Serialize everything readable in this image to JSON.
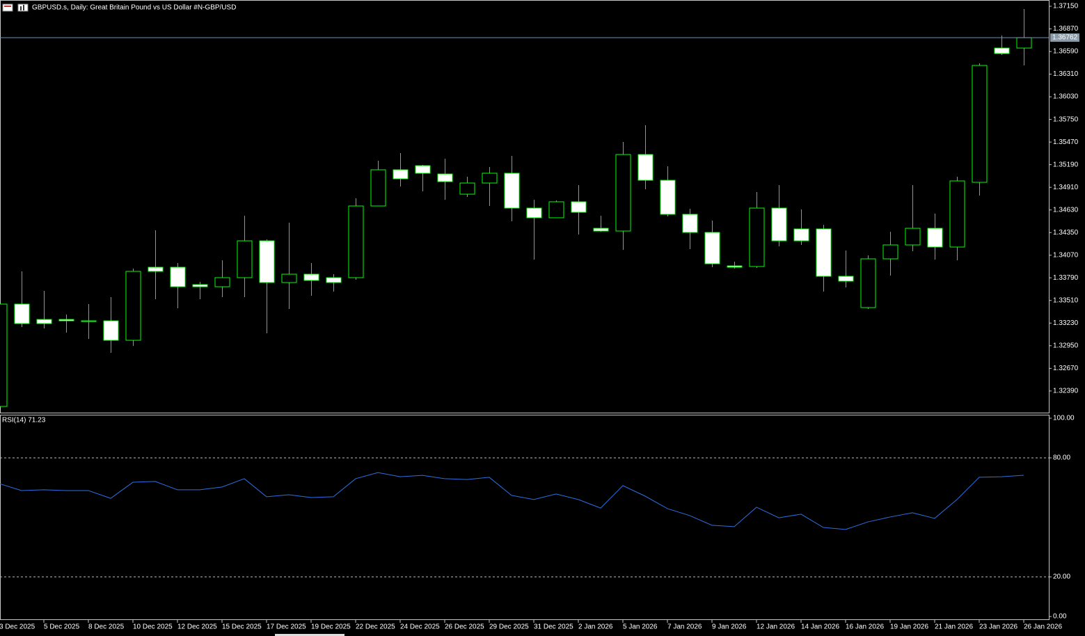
{
  "chart_data": [
    {
      "type": "candlestick",
      "title": "GBPUSD.s, Daily:  Great Britain Pound vs US Dollar #N-GBP/USD",
      "categories": [
        "3 Dec 2025",
        null,
        "5 Dec 2025",
        null,
        "8 Dec 2025",
        null,
        "10 Dec 2025",
        null,
        "12 Dec 2025",
        null,
        "15 Dec 2025",
        null,
        "17 Dec 2025",
        null,
        "19 Dec 2025",
        null,
        "22 Dec 2025",
        null,
        "24 Dec 2025",
        null,
        "26 Dec 2025",
        null,
        "29 Dec 2025",
        null,
        "31 Dec 2025",
        null,
        "2 Jan 2026",
        null,
        "5 Jan 2026",
        null,
        "7 Jan 2026",
        null,
        "9 Jan 2026",
        null,
        "12 Jan 2026",
        null,
        "14 Jan 2026",
        null,
        "16 Jan 2026",
        null,
        "19 Jan 2026",
        null,
        "21 Jan 2026",
        null,
        "23 Jan 2026",
        null,
        "26 Jan 2026"
      ],
      "open": [
        1.32199,
        1.33465,
        1.33275,
        1.33275,
        1.33258,
        1.33258,
        1.33017,
        1.33921,
        1.33921,
        1.33706,
        1.3368,
        1.33792,
        1.34248,
        1.33732,
        1.33835,
        1.33792,
        1.33792,
        1.34679,
        1.35127,
        1.35178,
        1.35075,
        1.34825,
        1.34963,
        1.35084,
        1.34653,
        1.34533,
        1.34731,
        1.34403,
        1.34369,
        1.35316,
        1.34997,
        1.34576,
        1.34352,
        1.33938,
        1.3393,
        1.34653,
        1.34395,
        1.34395,
        1.33809,
        1.33422,
        1.34025,
        1.34197,
        1.34403,
        1.34171,
        1.34972,
        1.36633,
        1.36633
      ],
      "high": [
        1.33465,
        1.3387,
        1.33629,
        1.33336,
        1.33465,
        1.33551,
        1.33904,
        1.34378,
        1.33973,
        1.3374,
        1.34007,
        1.34558,
        1.34266,
        1.34472,
        1.33973,
        1.33835,
        1.34774,
        1.35239,
        1.35333,
        1.35187,
        1.35264,
        1.35041,
        1.35161,
        1.35299,
        1.34756,
        1.34748,
        1.34937,
        1.34558,
        1.35471,
        1.35678,
        1.3517,
        1.34644,
        1.34498,
        1.3399,
        1.34851,
        1.34937,
        1.34636,
        1.34446,
        1.34128,
        1.34068,
        1.3436,
        1.34937,
        1.34584,
        1.35041,
        1.36444,
        1.36788,
        1.37116
      ],
      "low": [
        1.32199,
        1.33181,
        1.33164,
        1.33112,
        1.33034,
        1.32862,
        1.32948,
        1.33525,
        1.33413,
        1.33525,
        1.33551,
        1.33551,
        1.33103,
        1.33405,
        1.33568,
        1.3362,
        1.33766,
        1.34679,
        1.3492,
        1.3486,
        1.34756,
        1.34791,
        1.34679,
        1.3449,
        1.34016,
        1.34533,
        1.34326,
        1.3436,
        1.34136,
        1.34886,
        1.3455,
        1.34145,
        1.33921,
        1.33904,
        1.33913,
        1.3418,
        1.34197,
        1.3362,
        1.33672,
        1.33405,
        1.33818,
        1.34119,
        1.34016,
        1.34007,
        1.34808,
        1.36547,
        1.36418
      ],
      "close": [
        1.33465,
        1.33224,
        1.33224,
        1.33258,
        1.33258,
        1.33017,
        1.3387,
        1.3387,
        1.3368,
        1.3368,
        1.33792,
        1.34248,
        1.33732,
        1.33835,
        1.33758,
        1.33732,
        1.34679,
        1.35127,
        1.35015,
        1.35084,
        1.3498,
        1.34963,
        1.35084,
        1.34653,
        1.34533,
        1.34731,
        1.34601,
        1.34369,
        1.35316,
        1.34997,
        1.34576,
        1.34352,
        1.33964,
        1.33921,
        1.34653,
        1.34248,
        1.34248,
        1.33809,
        1.33749,
        1.34025,
        1.34197,
        1.34403,
        1.34171,
        1.34989,
        1.36418,
        1.36565,
        1.36762
      ],
      "up_color": "#000000",
      "down_color": "#ffffff",
      "outline_color": "#00ff00",
      "current_price": 1.36762,
      "ylim": [
        1.32122,
        1.37219
      ],
      "yticks": [
        {
          "value": 1.3715,
          "label": "1.37150"
        },
        {
          "value": 1.3687,
          "label": "1.36870"
        },
        {
          "value": 1.3659,
          "label": "1.36590"
        },
        {
          "value": 1.3631,
          "label": "1.36310"
        },
        {
          "value": 1.3603,
          "label": "1.36030"
        },
        {
          "value": 1.3575,
          "label": "1.35750"
        },
        {
          "value": 1.3547,
          "label": "1.35470"
        },
        {
          "value": 1.3519,
          "label": "1.35190"
        },
        {
          "value": 1.3491,
          "label": "1.34910"
        },
        {
          "value": 1.3463,
          "label": "1.34630"
        },
        {
          "value": 1.3435,
          "label": "1.34350"
        },
        {
          "value": 1.3407,
          "label": "1.34070"
        },
        {
          "value": 1.3379,
          "label": "1.33790"
        },
        {
          "value": 1.3351,
          "label": "1.33510"
        },
        {
          "value": 1.3323,
          "label": "1.33230"
        },
        {
          "value": 1.3295,
          "label": "1.32950"
        },
        {
          "value": 1.3267,
          "label": "1.32670"
        },
        {
          "value": 1.3239,
          "label": "1.32390"
        }
      ]
    },
    {
      "type": "line",
      "title": "RSI(14) 71.23",
      "values": [
        67.0,
        63.5,
        63.9,
        63.5,
        63.5,
        59.6,
        67.7,
        68.1,
        63.9,
        63.9,
        65.3,
        69.5,
        60.4,
        61.4,
        60.0,
        60.4,
        69.5,
        72.6,
        70.5,
        71.2,
        69.5,
        69.1,
        70.2,
        61.1,
        59.0,
        61.8,
        59.0,
        54.7,
        66.0,
        60.7,
        54.4,
        50.9,
        46.0,
        45.3,
        55.1,
        49.8,
        51.6,
        44.9,
        43.9,
        47.7,
        50.2,
        52.3,
        49.5,
        59.0,
        70.2,
        70.5,
        71.23
      ],
      "color": "#2f6fe0",
      "ylim": [
        0,
        100
      ],
      "yticks": [
        {
          "value": 100,
          "label": "100.00"
        },
        {
          "value": 80,
          "label": "80.00"
        },
        {
          "value": 20,
          "label": "20.00"
        },
        {
          "value": 0,
          "label": "0.00"
        }
      ]
    }
  ]
}
